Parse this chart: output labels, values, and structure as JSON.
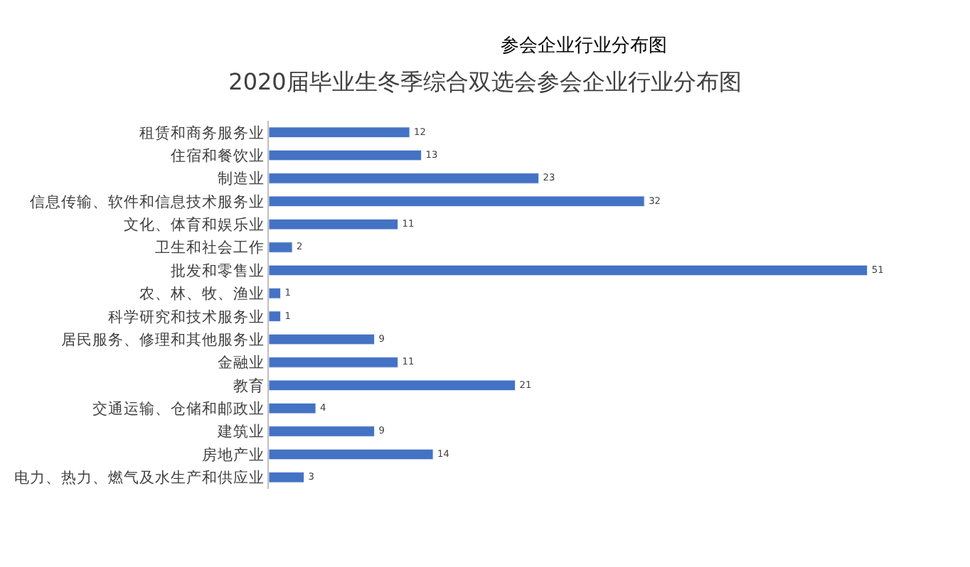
{
  "chart_data": {
    "type": "bar",
    "orientation": "horizontal",
    "title": "2020届毕业生冬季综合双选会参会企业行业分布图",
    "annotations": [
      "参会企业行业分布图"
    ],
    "categories": [
      "租赁和商务服务业",
      "住宿和餐饮业",
      "制造业",
      "信息传输、软件和信息技术服务业",
      "文化、体育和娱乐业",
      "卫生和社会工作",
      "批发和零售业",
      "农、林、牧、渔业",
      "科学研究和技术服务业",
      "居民服务、修理和其他服务业",
      "金融业",
      "教育",
      "交通运输、仓储和邮政业",
      "建筑业",
      "房地产业",
      "电力、热力、燃气及水生产和供应业"
    ],
    "values": [
      12,
      13,
      23,
      32,
      11,
      2,
      51,
      1,
      1,
      9,
      11,
      21,
      4,
      9,
      14,
      3
    ],
    "color": "#4472c4",
    "data_labels": true
  }
}
